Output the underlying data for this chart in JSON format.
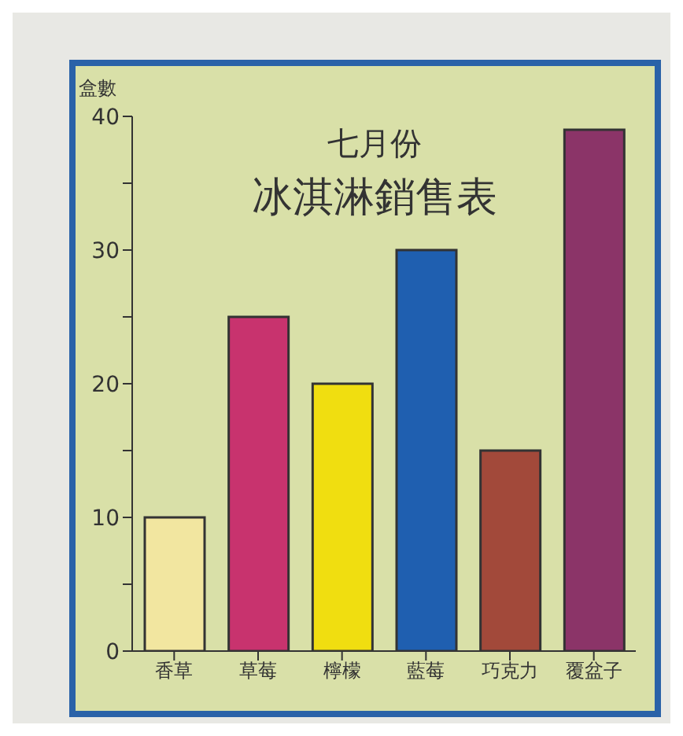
{
  "chart_data": {
    "type": "bar",
    "title": "七月份",
    "subtitle": "冰淇淋銷售表",
    "ylabel": "盒數",
    "categories": [
      "香草",
      "草莓",
      "檸檬",
      "藍莓",
      "巧克力",
      "覆盆子"
    ],
    "values": [
      10,
      25,
      20,
      30,
      15,
      39
    ],
    "colors": [
      "#f2e6a0",
      "#c8336e",
      "#f0de10",
      "#1f5fb0",
      "#a2493a",
      "#8b3468"
    ],
    "ylim": [
      0,
      40
    ],
    "yticks": [
      0,
      {
        "value": 5,
        "label": null
      },
      10,
      {
        "value": 15,
        "label": null
      },
      20,
      {
        "value": 25,
        "label": null
      },
      30,
      {
        "value": 35,
        "label": null
      },
      40
    ],
    "grid": false,
    "legend": false
  }
}
